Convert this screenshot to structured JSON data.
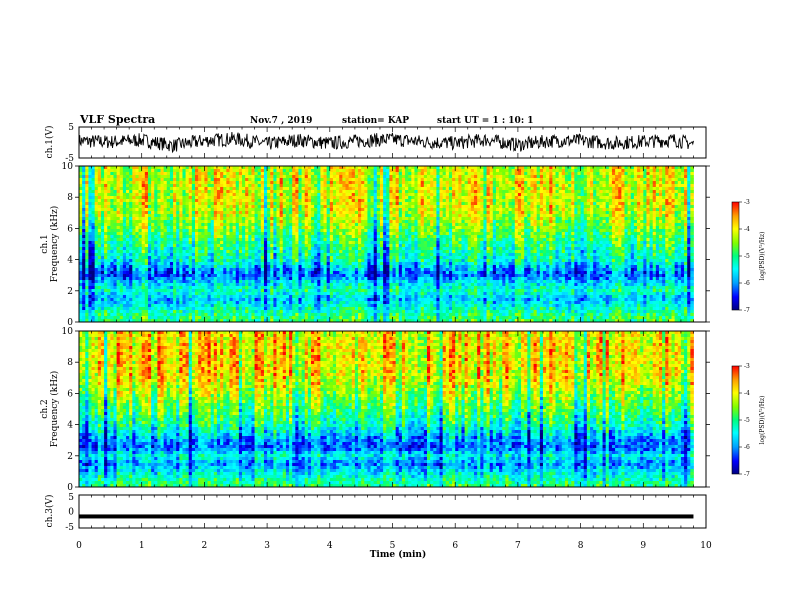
{
  "header": {
    "title": "VLF Spectra",
    "date": "Nov.7 , 2019",
    "station": "station= KAP",
    "start_ut": "start UT = 1 : 10: 1"
  },
  "colors": {
    "spectrum_scale": [
      "#000080",
      "#0000ff",
      "#00a0ff",
      "#00ffff",
      "#00ff80",
      "#80ff00",
      "#ffff00",
      "#ffa000",
      "#ff0000"
    ]
  },
  "chart_data": [
    {
      "type": "line",
      "panel": "ch1-waveform",
      "ylabel": "ch.1(V)",
      "ylim": [
        -5,
        5
      ],
      "yticks": [
        "5",
        "-5"
      ],
      "xlim": [
        0,
        10
      ],
      "series": [
        {
          "x": [
            0,
            0.5,
            1,
            1.5,
            2,
            2.5,
            3,
            3.5,
            4,
            4.5,
            5,
            5.5,
            6,
            6.5,
            7,
            7.5,
            8,
            8.5,
            9,
            9.5,
            9.8
          ],
          "values": [
            0.5,
            0.2,
            0.8,
            -1.0,
            0.6,
            1.2,
            -0.5,
            0.8,
            -0.3,
            0.6,
            1.0,
            0.2,
            -0.2,
            0.9,
            -0.8,
            0.5,
            0.6,
            -0.2,
            0.3,
            0.8,
            -0.5
          ]
        }
      ]
    },
    {
      "type": "heatmap",
      "panel": "ch1-spectrogram",
      "ylabel": "ch.1",
      "ylabel2": "Frequency (kHz)",
      "ylim": [
        0,
        10
      ],
      "yticks": [
        "0",
        "2",
        "4",
        "6",
        "8",
        "10"
      ],
      "xlim": [
        0,
        9.8
      ],
      "colorbar": {
        "label": "log(PSD)(V²/Hz)",
        "range": [
          -7,
          -3
        ],
        "ticks": [
          "-3",
          "-4",
          "-5",
          "-6",
          "-7"
        ]
      },
      "freq_profile_khz": [
        0,
        0.5,
        1,
        1.5,
        2,
        2.5,
        3,
        3.5,
        4,
        5,
        6,
        7,
        8,
        9,
        10
      ],
      "mean_log_psd": [
        -4.8,
        -5.0,
        -5.4,
        -5.8,
        -5.2,
        -5.6,
        -6.2,
        -5.8,
        -5.3,
        -5.0,
        -4.6,
        -4.2,
        -4.1,
        -4.1,
        -4.2
      ]
    },
    {
      "type": "heatmap",
      "panel": "ch2-spectrogram",
      "ylabel": "ch.2",
      "ylabel2": "Frequency (kHz)",
      "ylim": [
        0,
        10
      ],
      "yticks": [
        "0",
        "2",
        "4",
        "6",
        "8",
        "10"
      ],
      "xlim": [
        0,
        9.8
      ],
      "colorbar": {
        "label": "log(PSD)(V²/Hz)",
        "range": [
          -7,
          -3
        ],
        "ticks": [
          "-3",
          "-4",
          "-5",
          "-6",
          "-7"
        ]
      },
      "freq_profile_khz": [
        0,
        0.5,
        1,
        1.5,
        2,
        2.5,
        3,
        3.5,
        4,
        5,
        6,
        7,
        8,
        9,
        10
      ],
      "mean_log_psd": [
        -4.9,
        -5.2,
        -5.6,
        -6.0,
        -5.4,
        -6.2,
        -6.0,
        -5.6,
        -5.2,
        -4.8,
        -4.4,
        -4.0,
        -3.9,
        -3.9,
        -4.0
      ]
    },
    {
      "type": "line",
      "panel": "ch3-waveform",
      "ylabel": "ch.3(V)",
      "ylim": [
        -5,
        5
      ],
      "yticks": [
        "5",
        "0",
        "-5"
      ],
      "xlim": [
        0,
        10
      ],
      "xlabel": "Time (min)",
      "xticks": [
        "0",
        "1",
        "2",
        "3",
        "4",
        "5",
        "6",
        "7",
        "8",
        "9",
        "10"
      ],
      "series": [
        {
          "x": [
            0,
            9.8
          ],
          "values": [
            -1.5,
            -1.5
          ]
        }
      ]
    }
  ]
}
